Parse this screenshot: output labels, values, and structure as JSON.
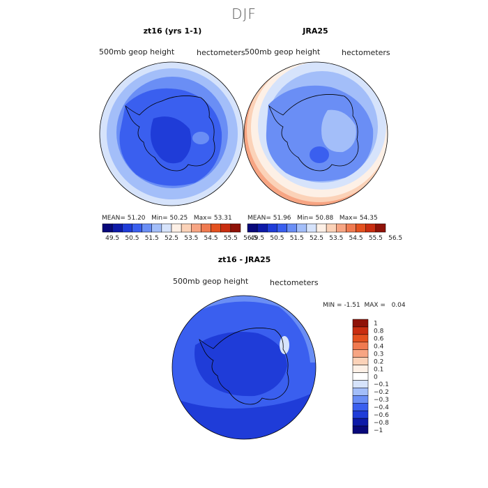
{
  "title": "DJF",
  "panels": [
    {
      "title": "zt16 (yrs 1-1)",
      "left_label": "500mb geop height",
      "right_label": "hectometers",
      "stats": {
        "mean_label": "MEAN=",
        "mean": "51.20",
        "min_label": "Min=",
        "min": "50.25",
        "max_label": "Max=",
        "max": "53.31"
      }
    },
    {
      "title": "JRA25",
      "left_label": "500mb geop height",
      "right_label": "hectometers",
      "stats": {
        "mean_label": "MEAN=",
        "mean": "51.96",
        "min_label": "Min=",
        "min": "50.88",
        "max_label": "Max=",
        "max": "54.35"
      }
    },
    {
      "title": "zt16 - JRA25",
      "left_label": "500mb geop height",
      "right_label": "hectometers",
      "stats": {
        "min_label": "MIN =",
        "min": "-1.51",
        "max_label": "MAX =",
        "max": "0.04"
      }
    }
  ],
  "colorbar_h": {
    "labels": [
      "49.5",
      "50.5",
      "51.5",
      "52.5",
      "53.5",
      "54.5",
      "55.5",
      "56.5"
    ],
    "colors": [
      "#08087a",
      "#0d1aa8",
      "#1f3cd8",
      "#3a5fef",
      "#6a8ef5",
      "#a3bef9",
      "#d6e3fb",
      "#fdf0e6",
      "#fbd2b8",
      "#f7a583",
      "#f07a50",
      "#e4511f",
      "#c92d10",
      "#8f1208"
    ]
  },
  "colorbar_v": {
    "labels": [
      "1",
      "0.8",
      "0.6",
      "0.4",
      "0.3",
      "0.2",
      "0.1",
      "0",
      "−0.1",
      "−0.2",
      "−0.3",
      "−0.4",
      "−0.6",
      "−0.8",
      "−1"
    ],
    "colors": [
      "#8f1208",
      "#c92d10",
      "#e4511f",
      "#f07a50",
      "#f7a583",
      "#fbd2b8",
      "#fdf0e6",
      "#ffffff",
      "#d6e3fb",
      "#a3bef9",
      "#6a8ef5",
      "#3a5fef",
      "#1f3cd8",
      "#0d1aa8",
      "#08087a"
    ]
  },
  "map_colors": {
    "ocean_edge": "#ffffff",
    "ring_light": "#d6e3fb",
    "ring_mid": "#a3bef9",
    "ring_blue": "#6a8ef5",
    "core": "#3a5fef",
    "deep": "#1f3cd8",
    "warm1": "#fdf0e6",
    "warm2": "#fbd2b8",
    "warm3": "#f7a583"
  }
}
